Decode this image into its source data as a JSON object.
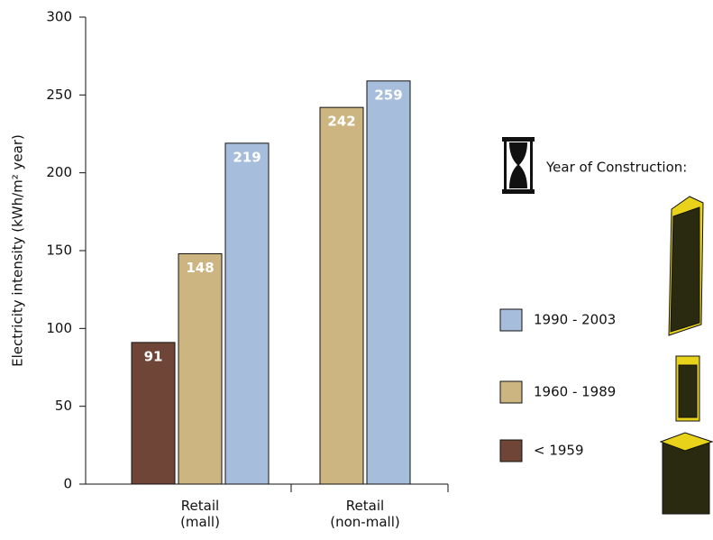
{
  "chart_data": {
    "type": "bar",
    "y_label": "Electricity intensity (kWh/m² year)",
    "legend_title": "Year of Construction:",
    "categories": [
      "Retail\n(mall)",
      "Retail\n(non-mall)"
    ],
    "series": [
      {
        "name": "< 1959",
        "color": "#6e4536",
        "values": [
          91,
          null
        ]
      },
      {
        "name": "1960 - 1989",
        "color": "#cdb582",
        "values": [
          148,
          242
        ]
      },
      {
        "name": "1990 - 2003",
        "color": "#a6bedb",
        "values": [
          219,
          259
        ]
      }
    ],
    "ylim": [
      0,
      300
    ],
    "yticks": [
      0,
      50,
      100,
      150,
      200,
      250,
      300
    ],
    "grid": false
  }
}
